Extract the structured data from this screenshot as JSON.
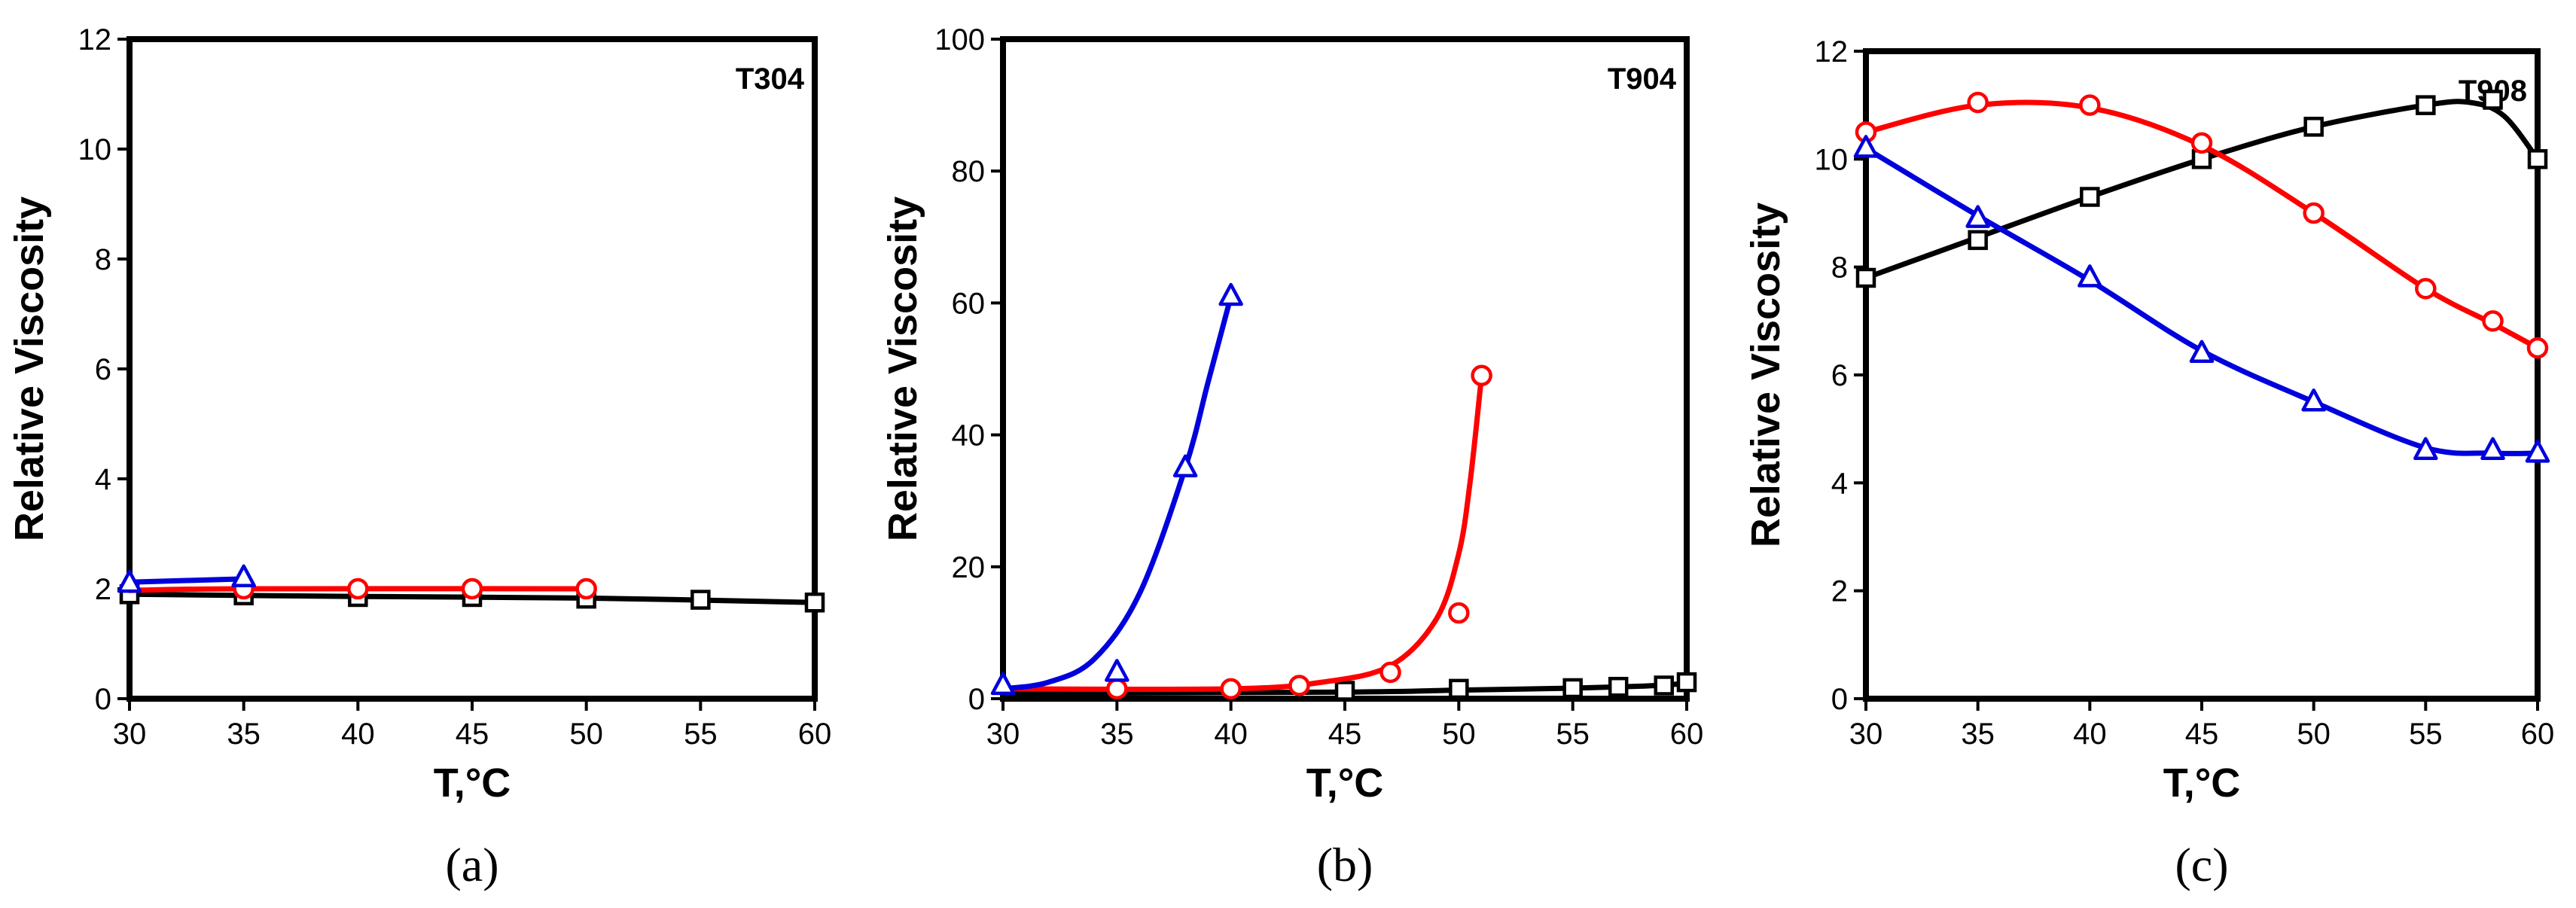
{
  "colors": {
    "black": "#000000",
    "red": "#ff0000",
    "blue": "#0000dd"
  },
  "chart_data": [
    {
      "type": "line",
      "panel_label": "(a)",
      "title": "T304",
      "xlabel": "T,°C",
      "ylabel": "Relative Viscosity",
      "xlim": [
        30,
        60
      ],
      "ylim": [
        0,
        12
      ],
      "xticks": [
        30,
        35,
        40,
        45,
        50,
        55,
        60
      ],
      "yticks": [
        0,
        2,
        4,
        6,
        8,
        10,
        12
      ],
      "series": [
        {
          "name": "square",
          "marker": "square",
          "color": "#000000",
          "x": [
            30,
            35,
            40,
            45,
            50,
            55,
            60
          ],
          "y": [
            1.9,
            1.88,
            1.85,
            1.85,
            1.82,
            1.8,
            1.75
          ],
          "curve": [
            [
              30,
              1.9
            ],
            [
              40,
              1.86
            ],
            [
              50,
              1.83
            ],
            [
              60,
              1.75
            ]
          ]
        },
        {
          "name": "circle",
          "marker": "circle",
          "color": "#ff0000",
          "x": [
            35,
            40,
            45,
            50
          ],
          "y": [
            2.0,
            2.0,
            2.0,
            2.0
          ],
          "curve": [
            [
              30,
              1.97
            ],
            [
              35,
              2.0
            ],
            [
              50,
              2.0
            ]
          ]
        },
        {
          "name": "triangle",
          "marker": "triangle",
          "color": "#0000dd",
          "x": [
            30,
            35
          ],
          "y": [
            2.1,
            2.2
          ],
          "curve": [
            [
              30,
              2.12
            ],
            [
              35,
              2.18
            ]
          ]
        }
      ]
    },
    {
      "type": "line",
      "panel_label": "(b)",
      "title": "T904",
      "xlabel": "T,°C",
      "ylabel": "Relative Viscosity",
      "xlim": [
        30,
        60
      ],
      "ylim": [
        0,
        100
      ],
      "xticks": [
        30,
        35,
        40,
        45,
        50,
        55,
        60
      ],
      "yticks": [
        0,
        20,
        40,
        60,
        80,
        100
      ],
      "series": [
        {
          "name": "square",
          "marker": "square",
          "color": "#000000",
          "x": [
            45,
            50,
            55,
            57,
            59,
            60
          ],
          "y": [
            1.2,
            1.5,
            1.6,
            1.8,
            2.0,
            2.5
          ],
          "curve": [
            [
              30,
              0.8
            ],
            [
              45,
              1.0
            ],
            [
              50,
              1.3
            ],
            [
              55,
              1.6
            ],
            [
              58,
              1.9
            ],
            [
              60,
              2.3
            ]
          ]
        },
        {
          "name": "circle",
          "marker": "circle",
          "color": "#ff0000",
          "x": [
            35,
            40,
            43,
            47,
            50,
            51
          ],
          "y": [
            1.5,
            1.5,
            2,
            4,
            13,
            49
          ],
          "curve": [
            [
              30,
              1.5
            ],
            [
              40,
              1.5
            ],
            [
              44,
              2.5
            ],
            [
              47,
              5
            ],
            [
              49,
              12
            ],
            [
              50,
              22
            ],
            [
              50.5,
              33
            ],
            [
              51,
              49
            ]
          ]
        },
        {
          "name": "triangle",
          "marker": "triangle",
          "color": "#0000dd",
          "x": [
            30,
            35,
            38,
            40
          ],
          "y": [
            2,
            4,
            35,
            61
          ],
          "curve": [
            [
              30,
              1.5
            ],
            [
              32,
              2.5
            ],
            [
              34,
              6
            ],
            [
              36,
              16
            ],
            [
              38,
              35
            ],
            [
              39,
              48
            ],
            [
              40,
              61
            ]
          ]
        }
      ]
    },
    {
      "type": "line",
      "panel_label": "(c)",
      "title": "T908",
      "xlabel": "T,°C",
      "ylabel": "Relative Viscosity",
      "xlim": [
        30,
        60
      ],
      "ylim": [
        0,
        12
      ],
      "xticks": [
        30,
        35,
        40,
        45,
        50,
        55,
        60
      ],
      "yticks": [
        0,
        2,
        4,
        6,
        8,
        10,
        12
      ],
      "series": [
        {
          "name": "square",
          "marker": "square",
          "color": "#000000",
          "x": [
            30,
            35,
            40,
            45,
            50,
            55,
            58,
            60
          ],
          "y": [
            7.8,
            8.5,
            9.3,
            10.0,
            10.6,
            11.0,
            11.1,
            10.0
          ],
          "curve": [
            [
              30,
              7.8
            ],
            [
              35,
              8.55
            ],
            [
              40,
              9.3
            ],
            [
              45,
              10.0
            ],
            [
              50,
              10.6
            ],
            [
              55,
              11.0
            ],
            [
              57,
              11.05
            ],
            [
              58.5,
              10.8
            ],
            [
              60,
              10.0
            ]
          ]
        },
        {
          "name": "circle",
          "marker": "circle",
          "color": "#ff0000",
          "x": [
            30,
            35,
            40,
            45,
            50,
            55,
            58,
            60
          ],
          "y": [
            10.5,
            11.05,
            11.0,
            10.3,
            9.0,
            7.6,
            7.0,
            6.5
          ],
          "curve": [
            [
              30,
              10.5
            ],
            [
              35,
              11.0
            ],
            [
              40,
              10.95
            ],
            [
              45,
              10.25
            ],
            [
              50,
              9.0
            ],
            [
              55,
              7.6
            ],
            [
              58,
              6.95
            ],
            [
              60,
              6.5
            ]
          ]
        },
        {
          "name": "triangle",
          "marker": "triangle",
          "color": "#0000dd",
          "x": [
            30,
            35,
            40,
            45,
            50,
            55,
            58,
            60
          ],
          "y": [
            10.2,
            8.9,
            7.8,
            6.4,
            5.5,
            4.6,
            4.6,
            4.55
          ],
          "curve": [
            [
              30,
              10.2
            ],
            [
              35,
              8.95
            ],
            [
              40,
              7.75
            ],
            [
              45,
              6.45
            ],
            [
              50,
              5.5
            ],
            [
              55,
              4.65
            ],
            [
              58,
              4.55
            ],
            [
              60,
              4.55
            ]
          ]
        }
      ]
    }
  ]
}
